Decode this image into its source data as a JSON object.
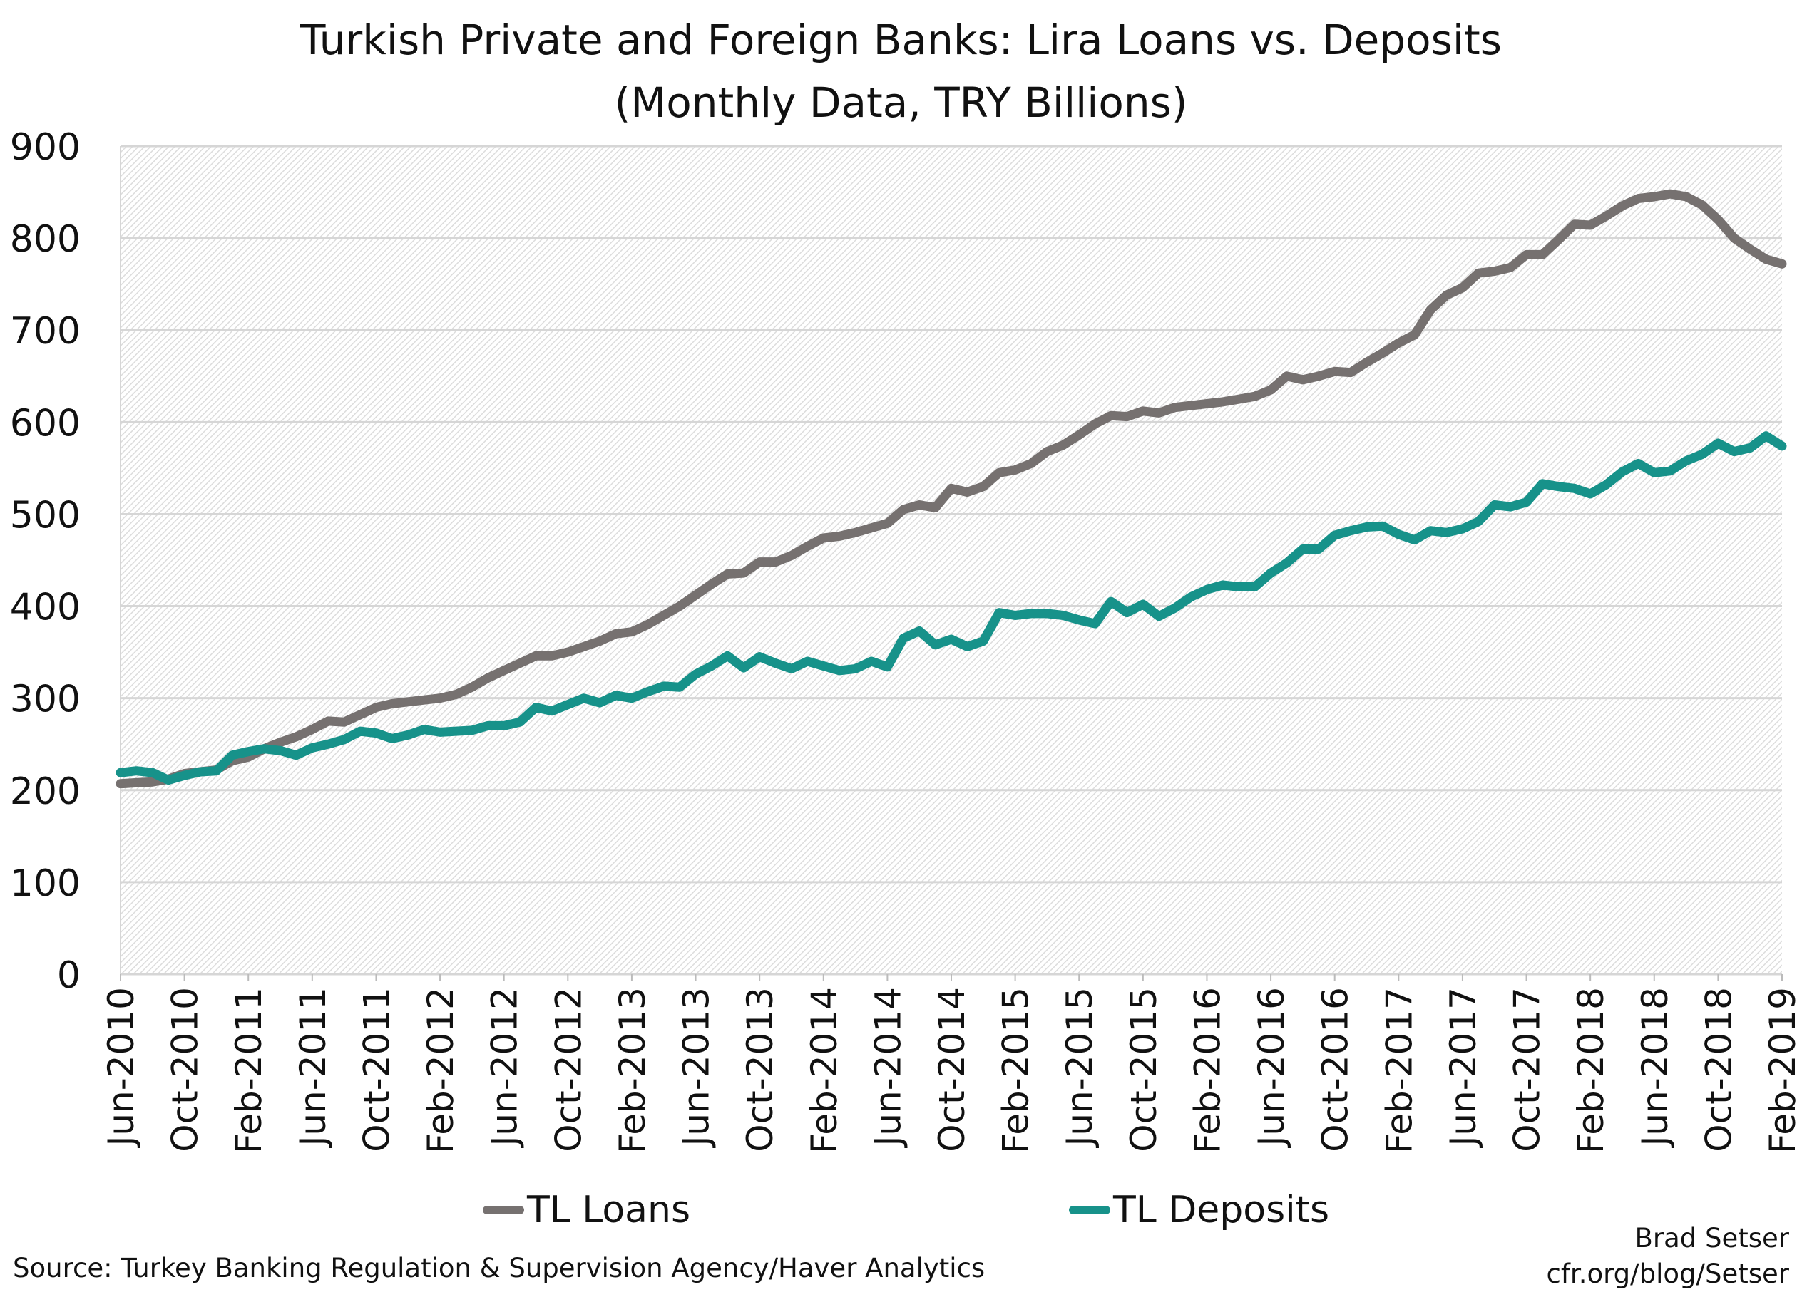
{
  "chart_data": {
    "type": "line",
    "title": "Turkish Private and Foreign Banks: Lira Loans vs. Deposits",
    "subtitle": "(Monthly Data, TRY Billions)",
    "xlabel": "",
    "ylabel": "",
    "ylim": [
      0,
      900
    ],
    "yticks": [
      "0",
      "100",
      "200",
      "300",
      "400",
      "500",
      "600",
      "700",
      "800",
      "900"
    ],
    "x_start": "Jun-2010",
    "x_end": "Feb-2019",
    "frequency": "monthly",
    "xtick_labels": [
      "Jun-2010",
      "Oct-2010",
      "Feb-2011",
      "Jun-2011",
      "Oct-2011",
      "Feb-2012",
      "Jun-2012",
      "Oct-2012",
      "Feb-2013",
      "Jun-2013",
      "Oct-2013",
      "Feb-2014",
      "Jun-2014",
      "Oct-2014",
      "Feb-2015",
      "Jun-2015",
      "Oct-2015",
      "Feb-2016",
      "Jun-2016",
      "Oct-2016",
      "Feb-2017",
      "Jun-2017",
      "Oct-2017",
      "Feb-2018",
      "Jun-2018",
      "Oct-2018",
      "Feb-2019"
    ],
    "grid": true,
    "legend_position": "bottom",
    "series": [
      {
        "name": "TL Loans",
        "color": "#767170",
        "values": [
          207,
          208,
          209,
          212,
          218,
          220,
          222,
          232,
          236,
          245,
          252,
          258,
          266,
          275,
          274,
          282,
          290,
          294,
          296,
          298,
          300,
          304,
          312,
          322,
          330,
          338,
          346,
          346,
          350,
          356,
          362,
          370,
          372,
          380,
          390,
          400,
          412,
          424,
          435,
          436,
          448,
          448,
          455,
          465,
          474,
          476,
          480,
          485,
          490,
          505,
          510,
          507,
          528,
          524,
          530,
          545,
          548,
          555,
          568,
          575,
          586,
          598,
          607,
          606,
          612,
          610,
          616,
          618,
          620,
          622,
          625,
          628,
          635,
          650,
          646,
          650,
          655,
          654,
          665,
          675,
          686,
          695,
          722,
          738,
          746,
          762,
          764,
          768,
          782,
          782,
          798,
          815,
          814,
          824,
          835,
          843,
          845,
          848,
          845,
          836,
          820,
          800,
          788,
          777,
          772
        ]
      },
      {
        "name": "TL Deposits",
        "color": "#17928a",
        "values": [
          219,
          221,
          219,
          211,
          216,
          220,
          221,
          238,
          242,
          245,
          243,
          238,
          246,
          250,
          255,
          264,
          262,
          256,
          260,
          266,
          263,
          264,
          265,
          270,
          270,
          274,
          290,
          286,
          293,
          300,
          295,
          303,
          300,
          307,
          313,
          312,
          326,
          335,
          346,
          333,
          345,
          338,
          332,
          340,
          335,
          330,
          332,
          340,
          334,
          365,
          373,
          358,
          364,
          356,
          362,
          393,
          390,
          392,
          392,
          390,
          385,
          381,
          405,
          393,
          402,
          389,
          398,
          410,
          418,
          423,
          421,
          421,
          436,
          447,
          462,
          462,
          477,
          482,
          486,
          487,
          478,
          472,
          482,
          480,
          484,
          492,
          510,
          508,
          513,
          533,
          530,
          528,
          522,
          532,
          546,
          555,
          545,
          547,
          558,
          565,
          577,
          568,
          572,
          585,
          574
        ]
      }
    ]
  },
  "footer": {
    "source": "Source: Turkey Banking Regulation & Supervision Agency/Haver Analytics",
    "author": "Brad Setser",
    "site": "cfr.org/blog/Setser"
  }
}
